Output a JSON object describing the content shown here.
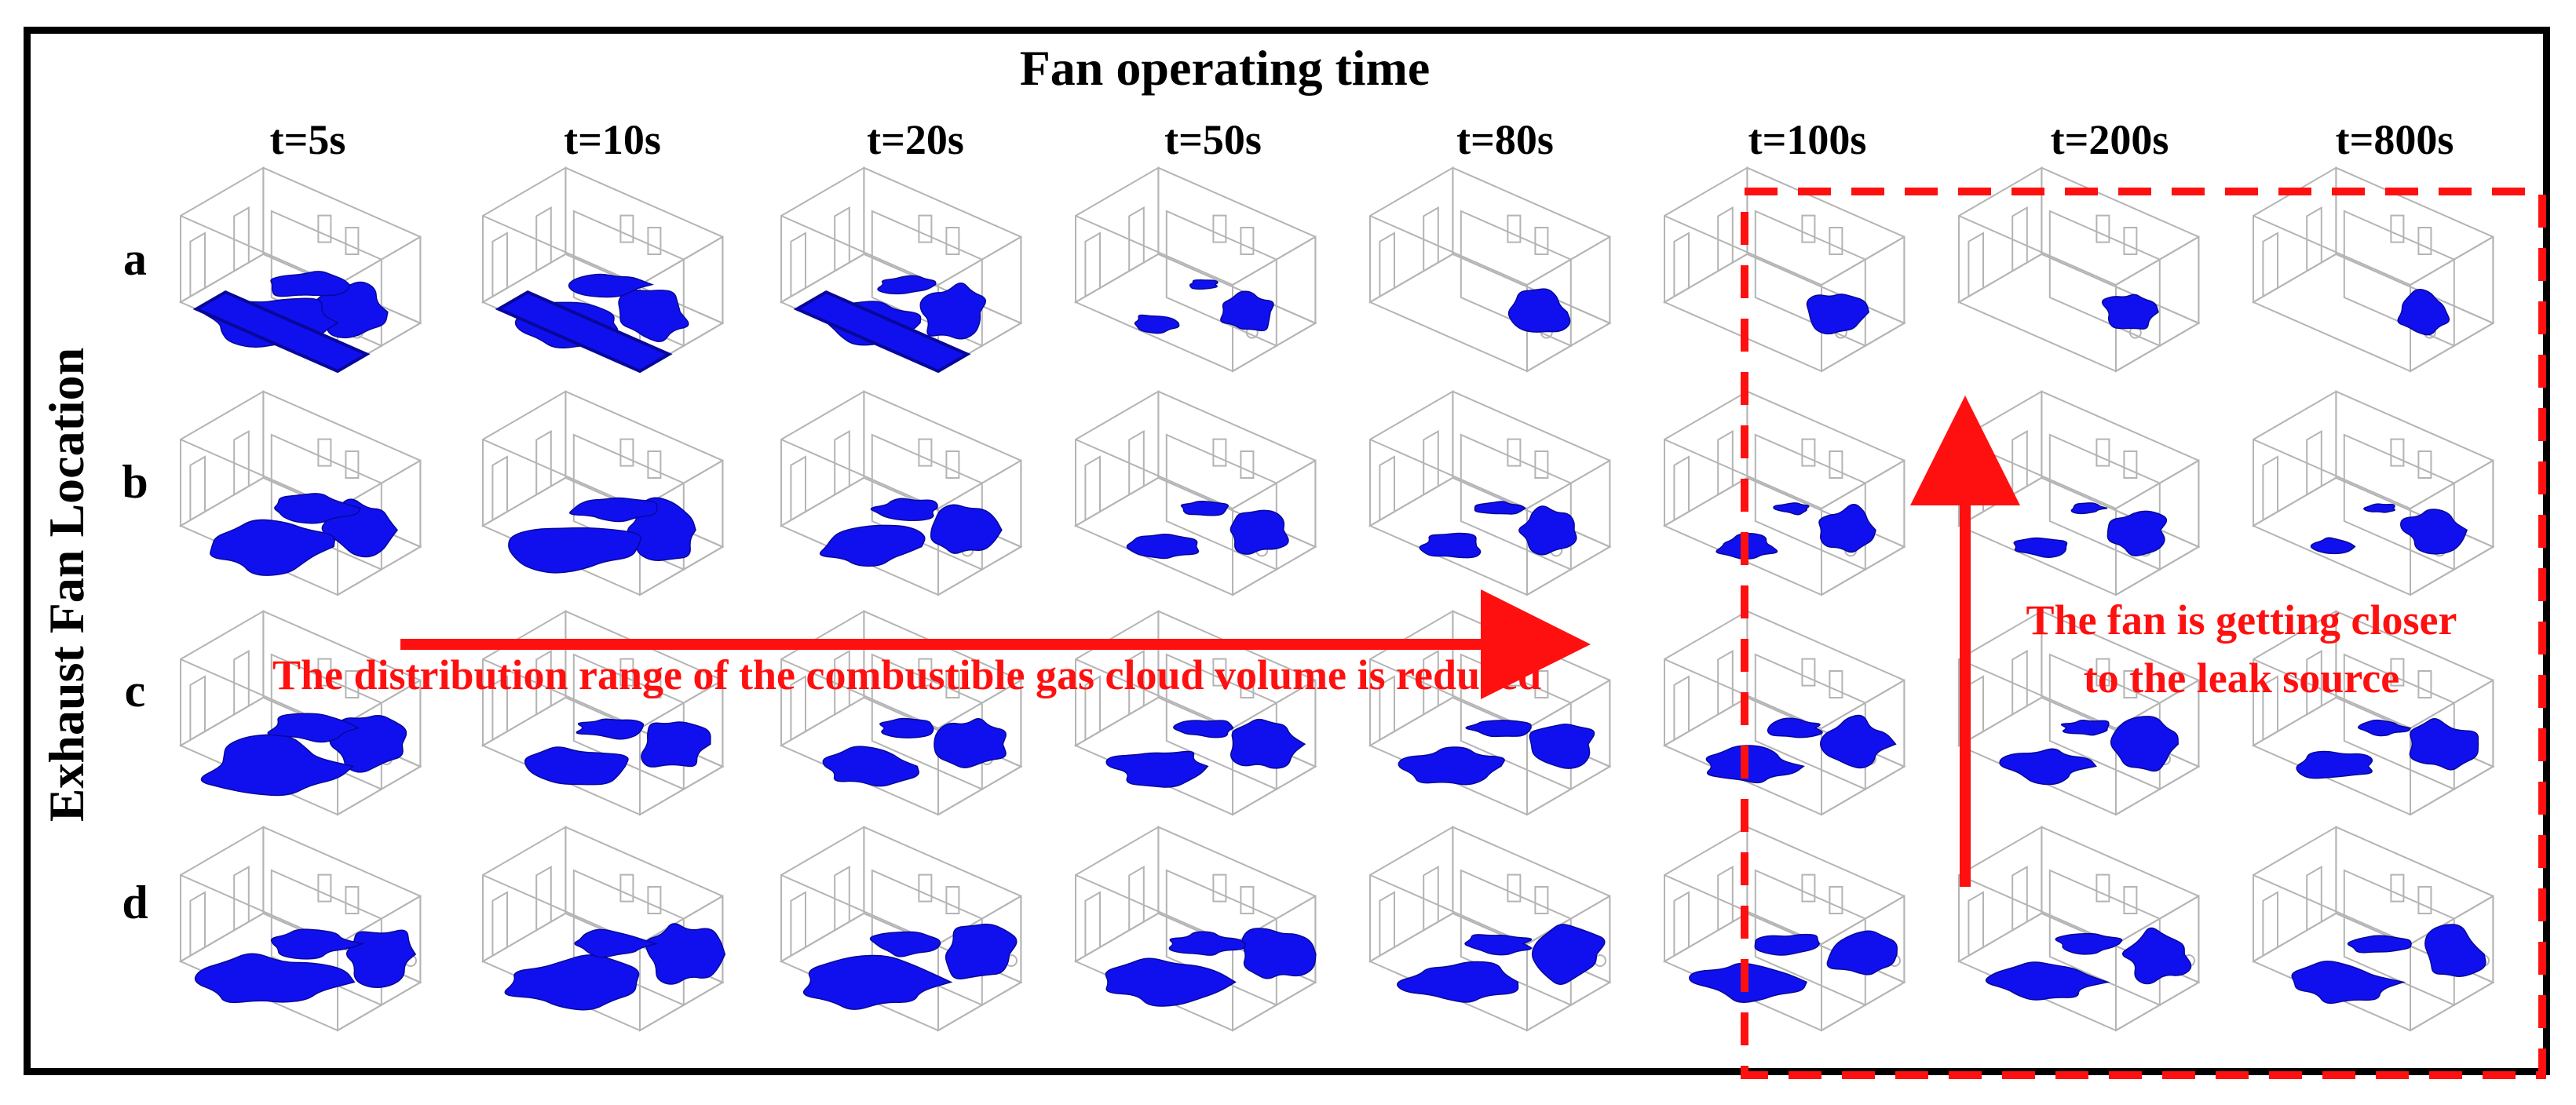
{
  "figure": {
    "title": "Fan operating time",
    "y_axis_title": "Exhaust Fan Location",
    "time_labels": [
      "t=5s",
      "t=10s",
      "t=20s",
      "t=50s",
      "t=80s",
      "t=100s",
      "t=200s",
      "t=800s"
    ],
    "row_labels": [
      "a",
      "b",
      "c",
      "d"
    ],
    "annotation_horizontal": "The distribution range of the combustible gas cloud volume is reduced",
    "annotation_vertical_line1": "The fan is getting closer",
    "annotation_vertical_line2": "to the leak source",
    "colors": {
      "gas_cloud": "#1010ee",
      "gas_cloud_dark": "#07079a",
      "annotation": "#ff1010",
      "room_wireframe": "#b4b4b4",
      "frame": "#000000"
    }
  }
}
